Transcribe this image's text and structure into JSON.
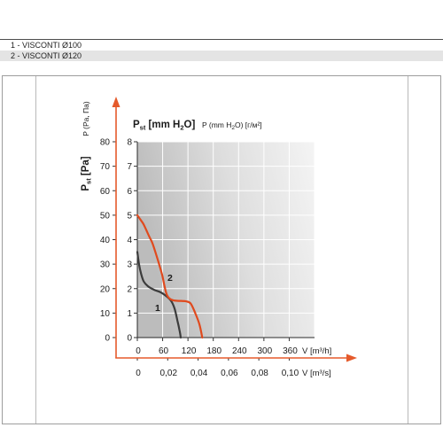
{
  "model_table": {
    "rows": [
      {
        "label": "1 - VISCONTI Ø100"
      },
      {
        "label": "2 - VISCONTI Ø120"
      }
    ]
  },
  "colors": {
    "axis_accent": "#e55a2b"
  },
  "chart_data": {
    "type": "line",
    "grid": true,
    "y_axis": {
      "label": {
        "main": "P",
        "sub": "st",
        "rest": " [Pa]"
      },
      "secondary_label": "P (Pa, Па)",
      "range": [
        0,
        80
      ],
      "tick_labels": [
        "0",
        "10",
        "20",
        "30",
        "40",
        "50",
        "60",
        "70",
        "80"
      ]
    },
    "y_axis_mm": {
      "label": {
        "main": "P",
        "sub": "st",
        "rest": " [mm H",
        "rest_sub": "2",
        "end": "O]"
      },
      "secondary_label": {
        "start": "P (mm H",
        "sub": "2",
        "end": "O) [г/м²]"
      },
      "tick_labels": [
        "0",
        "1",
        "2",
        "3",
        "4",
        "5",
        "6",
        "7",
        "8"
      ]
    },
    "x_axis": {
      "label": "V [m³/h]",
      "range": [
        0,
        420
      ],
      "tick_labels": [
        "0",
        "60",
        "120",
        "180",
        "240",
        "300",
        "360"
      ]
    },
    "x_axis_secondary": {
      "label": "V [m³/s]",
      "tick_labels": [
        "0",
        "0,02",
        "0,04",
        "0,06",
        "0,08",
        "0,10"
      ]
    },
    "series": [
      {
        "name": "1",
        "color": "#3c3c3c",
        "points": [
          [
            0,
            35
          ],
          [
            4,
            30
          ],
          [
            9,
            26
          ],
          [
            15,
            23
          ],
          [
            25,
            21
          ],
          [
            40,
            19.5
          ],
          [
            55,
            18.5
          ],
          [
            68,
            17
          ],
          [
            80,
            15
          ],
          [
            88,
            12
          ],
          [
            95,
            7
          ],
          [
            100,
            3
          ],
          [
            103,
            0
          ]
        ]
      },
      {
        "name": "2",
        "color": "#e04a1e",
        "points": [
          [
            0,
            50
          ],
          [
            6,
            48.5
          ],
          [
            14,
            46.5
          ],
          [
            21,
            44
          ],
          [
            29,
            41
          ],
          [
            36,
            38.5
          ],
          [
            48,
            32
          ],
          [
            59,
            25.5
          ],
          [
            65,
            20.5
          ],
          [
            70,
            17.5
          ],
          [
            76,
            16
          ],
          [
            85,
            15.2
          ],
          [
            100,
            15
          ],
          [
            115,
            14.8
          ],
          [
            126,
            14
          ],
          [
            136,
            10.5
          ],
          [
            147,
            5.5
          ],
          [
            154,
            0
          ]
        ]
      }
    ]
  }
}
